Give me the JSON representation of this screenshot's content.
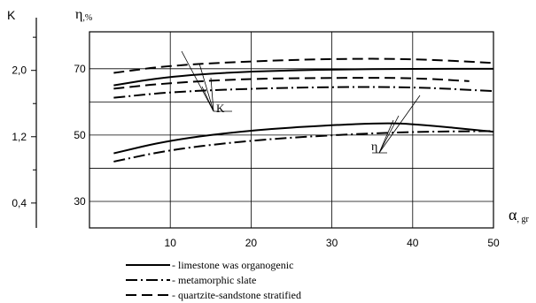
{
  "chart_data": [
    {
      "type": "line",
      "title": "",
      "y_left_axis": {
        "label": "K",
        "ticks": [
          {
            "value": 2.0,
            "label": "2,0"
          },
          {
            "value": 1.2,
            "label": "1,2"
          },
          {
            "value": 0.4,
            "label": "0,4"
          }
        ],
        "range": [
          0.1,
          2.7
        ]
      },
      "y_right_axis": {
        "label": "η",
        "unit": ",%",
        "ticks": [
          {
            "value": 70,
            "label": "70"
          },
          {
            "value": 50,
            "label": "50"
          },
          {
            "value": 30,
            "label": "30"
          }
        ],
        "range": [
          22,
          87
        ]
      },
      "x_axis": {
        "label": "α",
        "unit": ", gr",
        "ticks": [
          10,
          20,
          30,
          40,
          50
        ],
        "range": [
          0,
          50
        ]
      },
      "grid": true,
      "series": [
        {
          "name": "limestone was organogenic",
          "group": "K",
          "style": "solid",
          "x": [
            3,
            10,
            20,
            30,
            40,
            50
          ],
          "y": [
            1.82,
            1.93,
            1.99,
            2.01,
            2.02,
            2.02
          ]
        },
        {
          "name": "metamorphic slate",
          "group": "K",
          "style": "dash-dot",
          "x": [
            3,
            10,
            20,
            30,
            40,
            50
          ],
          "y": [
            1.67,
            1.74,
            1.78,
            1.8,
            1.8,
            1.75
          ]
        },
        {
          "name": "quartzite-sandstone stratified",
          "group": "K",
          "style": "dashed",
          "x": [
            3,
            10,
            20,
            30,
            40,
            50
          ],
          "y": [
            1.97,
            2.06,
            2.11,
            2.14,
            2.14,
            2.09
          ]
        },
        {
          "name": "quartzite-sandstone stratified",
          "group": "K",
          "style": "dashed",
          "x": [
            3,
            10,
            20,
            30,
            40,
            47
          ],
          "y": [
            1.78,
            1.85,
            1.9,
            1.91,
            1.91,
            1.87
          ]
        },
        {
          "name": "limestone was organogenic",
          "group": "η",
          "style": "solid",
          "x": [
            3,
            10,
            20,
            30,
            36,
            40,
            50
          ],
          "y": [
            44.5,
            48.5,
            51.5,
            53.0,
            53.6,
            53.4,
            51.0
          ]
        },
        {
          "name": "metamorphic slate",
          "group": "η",
          "style": "dash-dot",
          "x": [
            3,
            10,
            20,
            30,
            40,
            50
          ],
          "y": [
            42.0,
            45.6,
            48.4,
            50.0,
            51.0,
            51.2
          ]
        }
      ],
      "annotations": [
        {
          "text": "K"
        },
        {
          "text": "η"
        }
      ],
      "legend": {
        "placement": "bottom",
        "items": [
          {
            "label": "- limestone was organogenic",
            "style": "solid"
          },
          {
            "label": "- metamorphic slate",
            "style": "dash-dot"
          },
          {
            "label": "- quartzite-sandstone stratified",
            "style": "dashed"
          }
        ]
      }
    }
  ]
}
